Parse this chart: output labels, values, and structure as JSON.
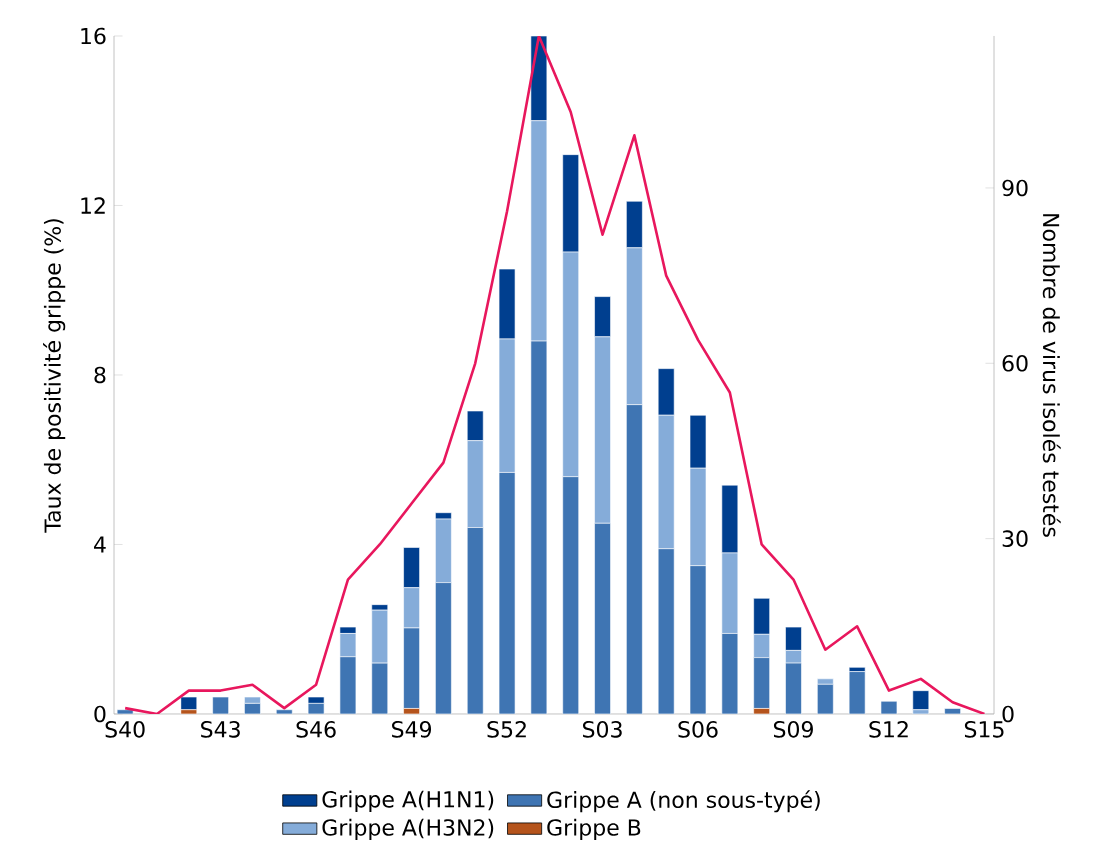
{
  "chart_data": {
    "type": "bar",
    "stacked": true,
    "ylabel": "Taux de positivité grippe (%)",
    "y2label": "Nombre de virus isolés testés",
    "categories": [
      "S40",
      null,
      null,
      "S43",
      null,
      null,
      "S46",
      null,
      null,
      "S49",
      null,
      null,
      "S52",
      null,
      null,
      "S03",
      null,
      null,
      "S06",
      null,
      null,
      "S09",
      null,
      null,
      "S12",
      null,
      null,
      "S15"
    ],
    "ylim": [
      0,
      16
    ],
    "yticks": [
      0,
      4,
      8,
      12,
      16
    ],
    "y2lim": [
      0,
      116
    ],
    "y2ticks": [
      0,
      30,
      60,
      90
    ],
    "grid": false,
    "legend": "bottom",
    "series": [
      {
        "name": "Grippe B",
        "color": "#b5541c",
        "values": [
          0,
          0,
          0.1,
          0,
          0,
          0,
          0,
          0,
          0,
          0.13,
          0,
          0,
          0,
          0,
          0,
          0,
          0,
          0,
          0,
          0,
          0.13,
          0,
          0,
          0,
          0,
          0,
          0,
          0
        ]
      },
      {
        "name": "Grippe A (non sous-typé)",
        "color": "#3f75b3",
        "values": [
          0.1,
          0,
          0,
          0.4,
          0.25,
          0.1,
          0.25,
          1.35,
          1.2,
          1.9,
          3.1,
          4.4,
          5.7,
          8.8,
          5.6,
          4.5,
          7.3,
          3.9,
          3.5,
          1.9,
          1.2,
          1.2,
          0.7,
          1,
          0.3,
          0,
          0.13,
          0
        ]
      },
      {
        "name": "Grippe A(H3N2)",
        "color": "#85acd9",
        "values": [
          0,
          0,
          0,
          0,
          0.15,
          0,
          0,
          0.55,
          1.25,
          0.95,
          1.5,
          2.05,
          3.15,
          5.2,
          5.3,
          4.4,
          3.7,
          3.15,
          2.3,
          1.9,
          0.55,
          0.3,
          0.13,
          0,
          0,
          0.1,
          0,
          0
        ]
      },
      {
        "name": "Grippe A(H1N1)",
        "color": "#003f8f",
        "values": [
          0,
          0,
          0.3,
          0,
          0,
          0,
          0.15,
          0.15,
          0.13,
          0.95,
          0.15,
          0.7,
          1.65,
          2,
          2.3,
          0.95,
          1.1,
          1.1,
          1.25,
          1.6,
          0.85,
          0.55,
          0,
          0.1,
          0,
          0.45,
          0,
          0
        ]
      },
      {
        "type": "line",
        "axis": "y2",
        "color": "#e8175d",
        "values": [
          1,
          0,
          4,
          4,
          5,
          1,
          5,
          23,
          29,
          36,
          43,
          60,
          86,
          116,
          103,
          82,
          99,
          75,
          64,
          55,
          29,
          23,
          11,
          15,
          4,
          6,
          2,
          0
        ]
      }
    ]
  }
}
